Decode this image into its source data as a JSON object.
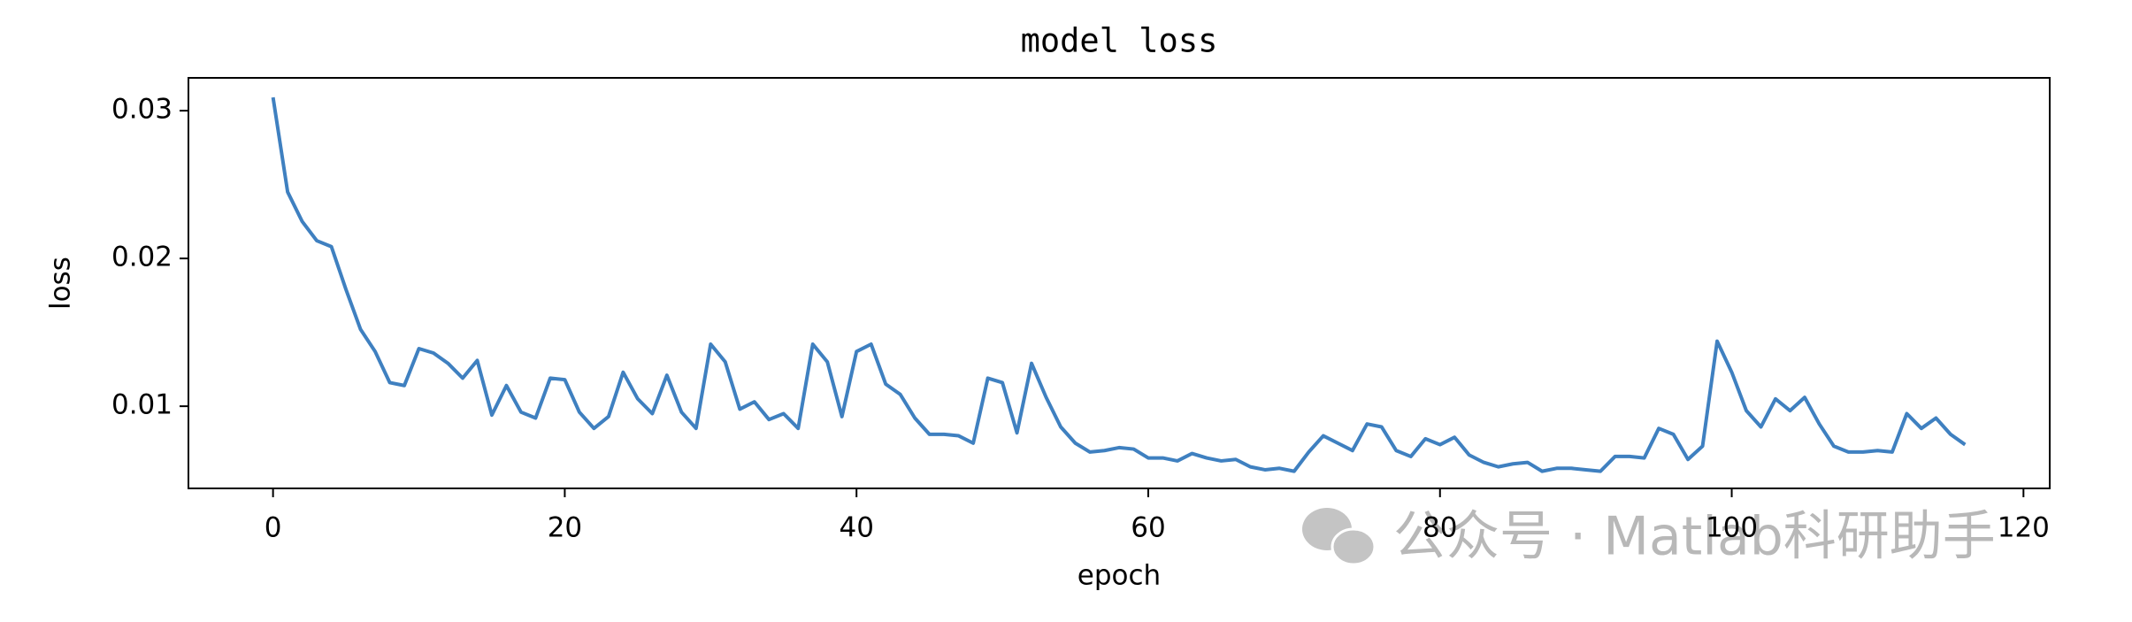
{
  "chart_data": {
    "type": "line",
    "title": "model loss",
    "xlabel": "epoch",
    "ylabel": "loss",
    "watermark": "公众号 · Matlab科研助手",
    "x": [
      0,
      1,
      2,
      3,
      4,
      5,
      6,
      7,
      8,
      9,
      10,
      11,
      12,
      13,
      14,
      15,
      16,
      17,
      18,
      19,
      20,
      21,
      22,
      23,
      24,
      25,
      26,
      27,
      28,
      29,
      30,
      31,
      32,
      33,
      34,
      35,
      36,
      37,
      38,
      39,
      40,
      41,
      42,
      43,
      44,
      45,
      46,
      47,
      48,
      49,
      50,
      51,
      52,
      53,
      54,
      55,
      56,
      57,
      58,
      59,
      60,
      61,
      62,
      63,
      64,
      65,
      66,
      67,
      68,
      69,
      70,
      71,
      72,
      73,
      74,
      75,
      76,
      77,
      78,
      79,
      80,
      81,
      82,
      83,
      84,
      85,
      86,
      87,
      88,
      89,
      90,
      91,
      92,
      93,
      94,
      95,
      96,
      97,
      98,
      99,
      100,
      101,
      102,
      103,
      104,
      105,
      106,
      107,
      108,
      109,
      110,
      111,
      112,
      113,
      114,
      115,
      116
    ],
    "series": [
      {
        "name": "loss",
        "color": "#3f80c0",
        "values": [
          0.0309,
          0.0245,
          0.0225,
          0.0212,
          0.0208,
          0.0179,
          0.0152,
          0.0137,
          0.0116,
          0.0114,
          0.0139,
          0.0136,
          0.0129,
          0.0119,
          0.0131,
          0.0094,
          0.0114,
          0.0096,
          0.0092,
          0.0119,
          0.0118,
          0.0096,
          0.0085,
          0.0093,
          0.0123,
          0.0105,
          0.0095,
          0.0121,
          0.0096,
          0.0085,
          0.0142,
          0.013,
          0.0098,
          0.0103,
          0.0091,
          0.0095,
          0.0085,
          0.0142,
          0.013,
          0.0093,
          0.0137,
          0.0142,
          0.0115,
          0.0108,
          0.0092,
          0.0081,
          0.0081,
          0.008,
          0.0075,
          0.0119,
          0.0116,
          0.0082,
          0.0129,
          0.0106,
          0.0086,
          0.0075,
          0.0069,
          0.007,
          0.0072,
          0.0071,
          0.0065,
          0.0065,
          0.0063,
          0.0068,
          0.0065,
          0.0063,
          0.0064,
          0.0059,
          0.0057,
          0.0058,
          0.0056,
          0.0069,
          0.008,
          0.0075,
          0.007,
          0.0088,
          0.0086,
          0.007,
          0.0066,
          0.0078,
          0.0074,
          0.0079,
          0.0067,
          0.0062,
          0.0059,
          0.0061,
          0.0062,
          0.0056,
          0.0058,
          0.0058,
          0.0057,
          0.0056,
          0.0066,
          0.0066,
          0.0065,
          0.0085,
          0.0081,
          0.0064,
          0.0073,
          0.0144,
          0.0123,
          0.0097,
          0.0086,
          0.0105,
          0.0097,
          0.0106,
          0.0088,
          0.0073,
          0.0069,
          0.0069,
          0.007,
          0.0069,
          0.0095,
          0.0085,
          0.0092,
          0.0081,
          0.0074
        ]
      }
    ],
    "xlim": [
      -5.8,
      121.8
    ],
    "xticks": [
      0,
      20,
      40,
      60,
      80,
      100,
      120
    ],
    "ylim": [
      0.00444,
      0.03222
    ],
    "yticks": [
      0.01,
      0.02,
      0.03
    ]
  }
}
